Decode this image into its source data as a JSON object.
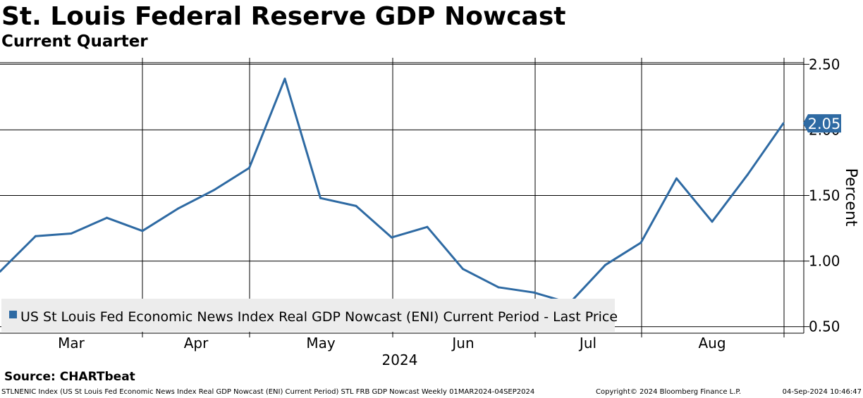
{
  "header": {
    "title": "St. Louis Federal Reserve GDP Nowcast",
    "subtitle": "Current Quarter"
  },
  "source": "Source: CHARTbeat",
  "footer": {
    "left": "STLNENIC Index (US St Louis Fed Economic News Index Real GDP Nowcast (ENI) Current Period) STL FRB GDP Nowcast  Weekly 01MAR2024-04SEP2024",
    "copyright": "Copyright© 2024 Bloomberg Finance L.P.",
    "timestamp": "04-Sep-2024 10:46:47"
  },
  "colors": {
    "series": "#2e6aa3",
    "grid": "#000000",
    "legend_bg": "#ececec"
  },
  "chart_data": {
    "type": "line",
    "title": "St. Louis Federal Reserve GDP Nowcast",
    "subtitle": "Current Quarter",
    "xlabel": "2024",
    "ylabel": "Percent",
    "ylim": [
      0.45,
      2.55
    ],
    "yticks": [
      0.5,
      1.0,
      1.5,
      2.0,
      2.5
    ],
    "ytick_labels": [
      "0.50",
      "1.00",
      "1.50",
      "2.00",
      "2.50"
    ],
    "months": [
      "Mar",
      "Apr",
      "May",
      "Jun",
      "Jul",
      "Aug"
    ],
    "x_start": "01MAR2024",
    "x_end": "04SEP2024",
    "frequency": "Weekly",
    "last_value_label": "2.05",
    "legend": "US St Louis Fed Economic News Index Real GDP Nowcast (ENI) Current Period - Last Price",
    "series": [
      {
        "name": "US St Louis Fed Economic News Index Real GDP Nowcast (ENI) Current Period - Last Price",
        "values": [
          0.92,
          1.19,
          1.21,
          1.33,
          1.23,
          1.4,
          1.54,
          1.71,
          2.39,
          1.48,
          1.42,
          1.18,
          1.26,
          0.94,
          0.8,
          0.76,
          0.68,
          0.97,
          1.14,
          1.63,
          1.3,
          1.66,
          2.05
        ]
      }
    ]
  }
}
